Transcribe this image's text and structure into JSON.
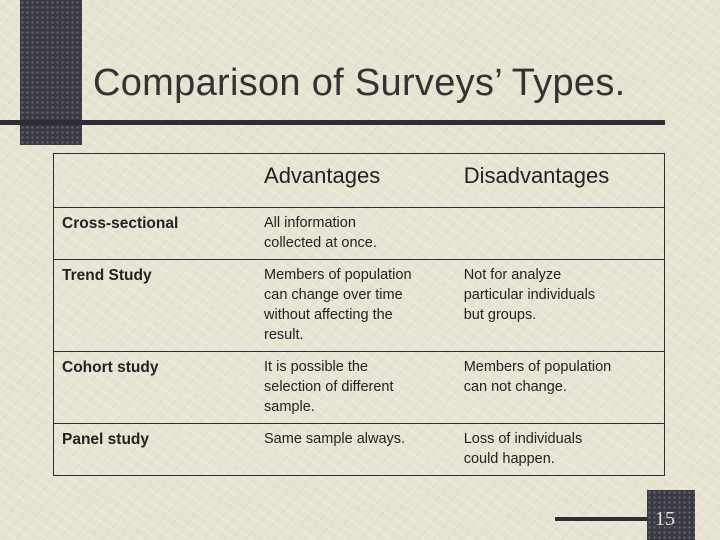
{
  "title": "Comparison of Surveys’ Types.",
  "table": {
    "header": [
      null,
      "Advantages",
      "Disadvantages"
    ],
    "rows": [
      [
        "Cross-sectional",
        "All information\ncollected at once.",
        null
      ],
      [
        "Trend Study",
        "Members of population\ncan change over time\nwithout affecting the\nresult.",
        "Not for analyze\nparticular individuals\nbut groups."
      ],
      [
        "Cohort study",
        "It is possible the\nselection of different\nsample.",
        "Members of population\ncan not change."
      ],
      [
        "Panel study",
        "Same sample always.",
        "Loss of individuals\ncould happen."
      ]
    ]
  },
  "page_number": "15"
}
